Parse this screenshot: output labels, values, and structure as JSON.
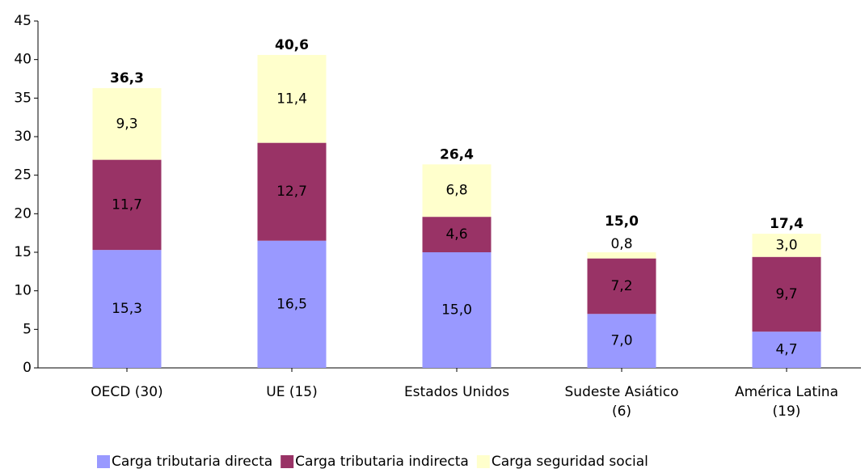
{
  "chart_data": {
    "type": "stacked_bar",
    "categories": [
      [
        "OECD (30)"
      ],
      [
        "UE (15)"
      ],
      [
        "Estados Unidos"
      ],
      [
        "Sudeste Asiático",
        "(6)"
      ],
      [
        "América Latina",
        "(19)"
      ]
    ],
    "series": [
      {
        "name": "Carga tributaria directa",
        "color": "#9999ff",
        "values": [
          15.3,
          16.5,
          15.0,
          7.0,
          4.7
        ],
        "value_labels": [
          "15,3",
          "16,5",
          "15,0",
          "7,0",
          "4,7"
        ]
      },
      {
        "name": "Carga tributaria indirecta",
        "color": "#993366",
        "values": [
          11.7,
          12.7,
          4.6,
          7.2,
          9.7
        ],
        "value_labels": [
          "11,7",
          "12,7",
          "4,6",
          "7,2",
          "9,7"
        ]
      },
      {
        "name": "Carga seguridad social",
        "color": "#ffffcc",
        "values": [
          9.3,
          11.4,
          6.8,
          0.8,
          3.0
        ],
        "value_labels": [
          "9,3",
          "11,4",
          "6,8",
          "0,8",
          "3,0"
        ]
      }
    ],
    "totals": {
      "values": [
        36.3,
        40.6,
        26.4,
        15.0,
        17.4
      ],
      "value_labels": [
        "36,3",
        "40,6",
        "26,4",
        "15,0",
        "17,4"
      ]
    },
    "ylim": [
      0,
      45
    ],
    "yticks": [
      0,
      5,
      10,
      15,
      20,
      25,
      30,
      35,
      40,
      45
    ],
    "legend": "bottom"
  }
}
